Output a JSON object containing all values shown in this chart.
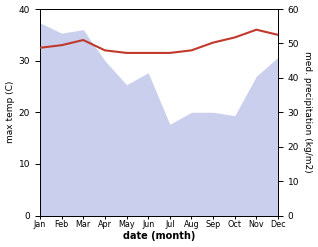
{
  "months": [
    "Jan",
    "Feb",
    "Mar",
    "Apr",
    "May",
    "Jun",
    "Jul",
    "Aug",
    "Sep",
    "Oct",
    "Nov",
    "Dec"
  ],
  "month_indices": [
    1,
    2,
    3,
    4,
    5,
    6,
    7,
    8,
    9,
    10,
    11,
    12
  ],
  "temp_max": [
    32.5,
    33.0,
    34.0,
    32.0,
    31.5,
    31.5,
    31.5,
    32.0,
    33.5,
    34.5,
    36.0,
    35.0
  ],
  "precip_kg": [
    56.0,
    53.0,
    54.0,
    45.0,
    38.0,
    41.5,
    26.5,
    30.0,
    30.0,
    29.0,
    40.5,
    46.0
  ],
  "temp_ylim": [
    0,
    40
  ],
  "precip_ylim": [
    0,
    60
  ],
  "temp_color": "#c0392b",
  "precip_fill_color": "#b8c0e8",
  "precip_fill_alpha": 0.75,
  "xlabel": "date (month)",
  "ylabel_left": "max temp (C)",
  "ylabel_right": "med. precipitation (kg/m2)",
  "temp_linewidth": 1.5,
  "background_color": "#ffffff"
}
